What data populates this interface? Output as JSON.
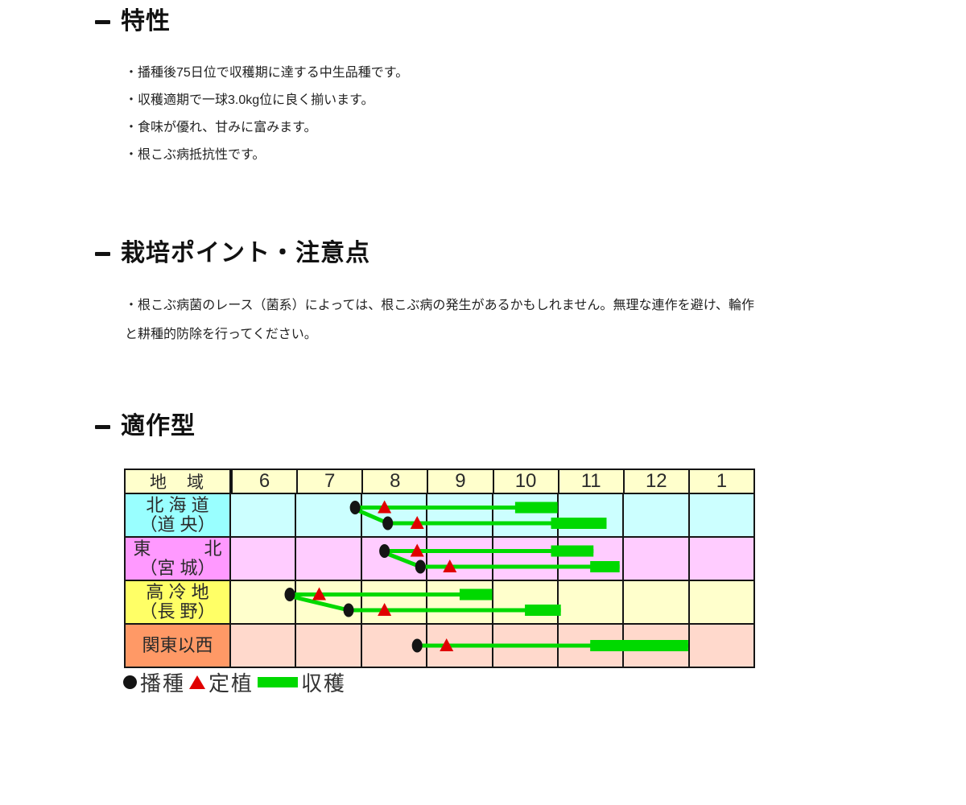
{
  "sections": {
    "characteristics": {
      "title": "特性",
      "bullets": [
        "・播種後75日位で収穫期に達する中生品種です。",
        "・収穫適期で一球3.0kg位に良く揃います。",
        "・食味が優れ、甘みに富みます。",
        "・根こぶ病抵抗性です。"
      ]
    },
    "cultivation": {
      "title": "栽培ポイント・注意点",
      "note": "・根こぶ病菌のレース（菌系）によっては、根こぶ病の発生があるかもしれません。無理な連作を避け、輪作と耕種的防除を行ってください。"
    },
    "calendar": {
      "title": "適作型"
    }
  },
  "chart_data": {
    "type": "gantt",
    "title": "適作型",
    "column_header": "地　域",
    "columns": [
      "6",
      "7",
      "8",
      "9",
      "10",
      "11",
      "12",
      "1"
    ],
    "axis": {
      "month_start": 6,
      "month_end": 14,
      "unit": "month"
    },
    "colors": {
      "sow_dot": "#141414",
      "plant_triangle": "#e00000",
      "harvest_green": "#00d900",
      "grid_border": "#151515",
      "header_bg": "#FFFFCC"
    },
    "rows": [
      {
        "region_lines": [
          "北 海 道",
          "（道 央）"
        ],
        "label_bg": "#99FFFF",
        "row_bg": "#CCFFFF",
        "schedules": [
          {
            "sow": 7.9,
            "plant": 8.35,
            "harvest_start": 10.35,
            "harvest_end": 11.0
          },
          {
            "sow": 8.4,
            "plant": 8.85,
            "harvest_start": 10.9,
            "harvest_end": 11.75
          }
        ]
      },
      {
        "region_lines": [
          "東　　　北",
          "（宮 城）"
        ],
        "label_bg": "#FF99FF",
        "row_bg": "#FFCCFF",
        "schedules": [
          {
            "sow": 8.35,
            "plant": 8.85,
            "harvest_start": 10.9,
            "harvest_end": 11.55
          },
          {
            "sow": 8.9,
            "plant": 9.35,
            "harvest_start": 11.5,
            "harvest_end": 11.95
          }
        ]
      },
      {
        "region_lines": [
          "高 冷 地",
          "（長 野）"
        ],
        "label_bg": "#FFFF66",
        "row_bg": "#FFFFCC",
        "schedules": [
          {
            "sow": 6.9,
            "plant": 7.35,
            "harvest_start": 9.5,
            "harvest_end": 10.0
          },
          {
            "sow": 7.8,
            "plant": 8.35,
            "harvest_start": 10.5,
            "harvest_end": 11.05
          }
        ]
      },
      {
        "region_lines": [
          "関東以西"
        ],
        "label_bg": "#FF9966",
        "row_bg": "#FFD9CC",
        "schedules": [
          {
            "sow": 8.85,
            "plant": 9.3,
            "harvest_start": 11.5,
            "harvest_end": 13.0
          }
        ]
      }
    ],
    "legend": [
      {
        "marker": "circle",
        "color": "#141414",
        "label": "播種"
      },
      {
        "marker": "triangle",
        "color": "#e00000",
        "label": "定植"
      },
      {
        "marker": "bar",
        "color": "#00d900",
        "label": "収穫"
      }
    ]
  }
}
